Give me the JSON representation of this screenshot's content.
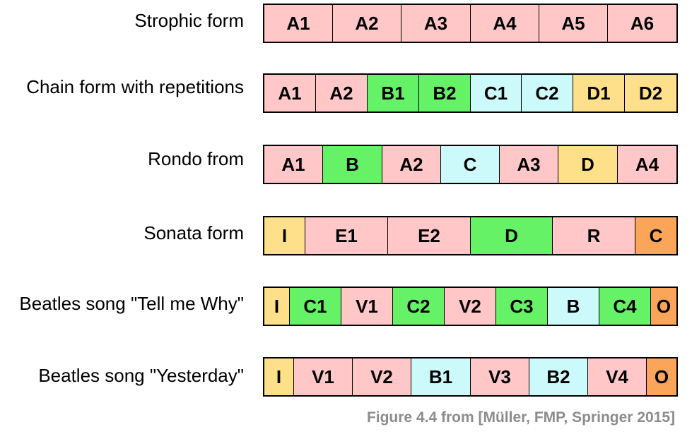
{
  "colors": {
    "A": "#ffc7c7",
    "B": "#66f266",
    "C": "#ccfafa",
    "D": "#ffe08a",
    "orange": "#fba55a"
  },
  "rows": [
    {
      "label": "Strophic form",
      "segments": [
        {
          "text": "A1",
          "color": "A",
          "weight": 1
        },
        {
          "text": "A2",
          "color": "A",
          "weight": 1
        },
        {
          "text": "A3",
          "color": "A",
          "weight": 1
        },
        {
          "text": "A4",
          "color": "A",
          "weight": 1
        },
        {
          "text": "A5",
          "color": "A",
          "weight": 1
        },
        {
          "text": "A6",
          "color": "A",
          "weight": 1
        }
      ]
    },
    {
      "label": "Chain form with repetitions",
      "segments": [
        {
          "text": "A1",
          "color": "A",
          "weight": 1
        },
        {
          "text": "A2",
          "color": "A",
          "weight": 1
        },
        {
          "text": "B1",
          "color": "B",
          "weight": 1
        },
        {
          "text": "B2",
          "color": "B",
          "weight": 1
        },
        {
          "text": "C1",
          "color": "C",
          "weight": 1
        },
        {
          "text": "C2",
          "color": "C",
          "weight": 1
        },
        {
          "text": "D1",
          "color": "D",
          "weight": 1
        },
        {
          "text": "D2",
          "color": "D",
          "weight": 1
        }
      ]
    },
    {
      "label": "Rondo from",
      "segments": [
        {
          "text": "A1",
          "color": "A",
          "weight": 1
        },
        {
          "text": "B",
          "color": "B",
          "weight": 1
        },
        {
          "text": "A2",
          "color": "A",
          "weight": 1
        },
        {
          "text": "C",
          "color": "C",
          "weight": 1
        },
        {
          "text": "A3",
          "color": "A",
          "weight": 1
        },
        {
          "text": "D",
          "color": "D",
          "weight": 1
        },
        {
          "text": "A4",
          "color": "A",
          "weight": 1
        }
      ]
    },
    {
      "label": "Sonata form",
      "segments": [
        {
          "text": "I",
          "color": "D",
          "weight": 0.5
        },
        {
          "text": "E1",
          "color": "A",
          "weight": 1
        },
        {
          "text": "E2",
          "color": "A",
          "weight": 1
        },
        {
          "text": "D",
          "color": "B",
          "weight": 1
        },
        {
          "text": "R",
          "color": "A",
          "weight": 1
        },
        {
          "text": "C",
          "color": "orange",
          "weight": 0.5
        }
      ]
    },
    {
      "label": "Beatles song \"Tell me Why\"",
      "segments": [
        {
          "text": "I",
          "color": "D",
          "weight": 0.5
        },
        {
          "text": "C1",
          "color": "B",
          "weight": 1
        },
        {
          "text": "V1",
          "color": "A",
          "weight": 1
        },
        {
          "text": "C2",
          "color": "B",
          "weight": 1
        },
        {
          "text": "V2",
          "color": "A",
          "weight": 1
        },
        {
          "text": "C3",
          "color": "B",
          "weight": 1
        },
        {
          "text": "B",
          "color": "C",
          "weight": 1
        },
        {
          "text": "C4",
          "color": "B",
          "weight": 1
        },
        {
          "text": "O",
          "color": "orange",
          "weight": 0.5
        }
      ]
    },
    {
      "label": "Beatles song \"Yesterday\"",
      "segments": [
        {
          "text": "I",
          "color": "D",
          "weight": 0.5
        },
        {
          "text": "V1",
          "color": "A",
          "weight": 1
        },
        {
          "text": "V2",
          "color": "A",
          "weight": 1
        },
        {
          "text": "B1",
          "color": "C",
          "weight": 1
        },
        {
          "text": "V3",
          "color": "A",
          "weight": 1
        },
        {
          "text": "B2",
          "color": "C",
          "weight": 1
        },
        {
          "text": "V4",
          "color": "A",
          "weight": 1
        },
        {
          "text": "O",
          "color": "orange",
          "weight": 0.5
        }
      ]
    }
  ],
  "caption": "Figure 4.4 from [Müller, FMP, Springer 2015]"
}
